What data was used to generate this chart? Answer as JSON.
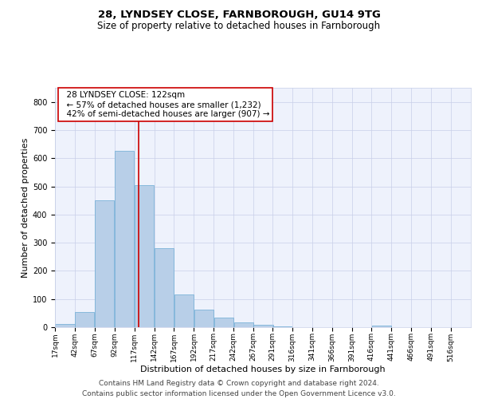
{
  "title_line1": "28, LYNDSEY CLOSE, FARNBOROUGH, GU14 9TG",
  "title_line2": "Size of property relative to detached houses in Farnborough",
  "xlabel": "Distribution of detached houses by size in Farnborough",
  "ylabel": "Number of detached properties",
  "footer_line1": "Contains HM Land Registry data © Crown copyright and database right 2024.",
  "footer_line2": "Contains public sector information licensed under the Open Government Licence v3.0.",
  "annotation_line1": "28 LYNDSEY CLOSE: 122sqm",
  "annotation_line2": "← 57% of detached houses are smaller (1,232)",
  "annotation_line3": "42% of semi-detached houses are larger (907) →",
  "bin_starts": [
    17,
    42,
    67,
    92,
    117,
    142,
    167,
    192,
    217,
    242,
    267,
    291,
    316,
    341,
    366,
    391,
    416,
    441,
    466,
    491,
    516
  ],
  "bar_heights": [
    10,
    55,
    450,
    625,
    505,
    280,
    115,
    62,
    35,
    18,
    8,
    3,
    0,
    0,
    0,
    0,
    7,
    0,
    0,
    0,
    0
  ],
  "bin_width": 25,
  "bar_color": "#b8cfe8",
  "bar_edge_color": "#6aaad4",
  "vline_color": "#cc0000",
  "vline_x": 122,
  "annotation_box_edgecolor": "#cc0000",
  "annotation_box_facecolor": "#ffffff",
  "background_color": "#eef2fc",
  "grid_color": "#c8cfe8",
  "ylim": [
    0,
    850
  ],
  "yticks": [
    0,
    100,
    200,
    300,
    400,
    500,
    600,
    700,
    800
  ],
  "xlim_left": 17,
  "xlim_right": 541,
  "title_fontsize": 9.5,
  "subtitle_fontsize": 8.5,
  "axis_label_fontsize": 8,
  "tick_fontsize": 7,
  "annotation_fontsize": 7.5,
  "footer_fontsize": 6.5
}
